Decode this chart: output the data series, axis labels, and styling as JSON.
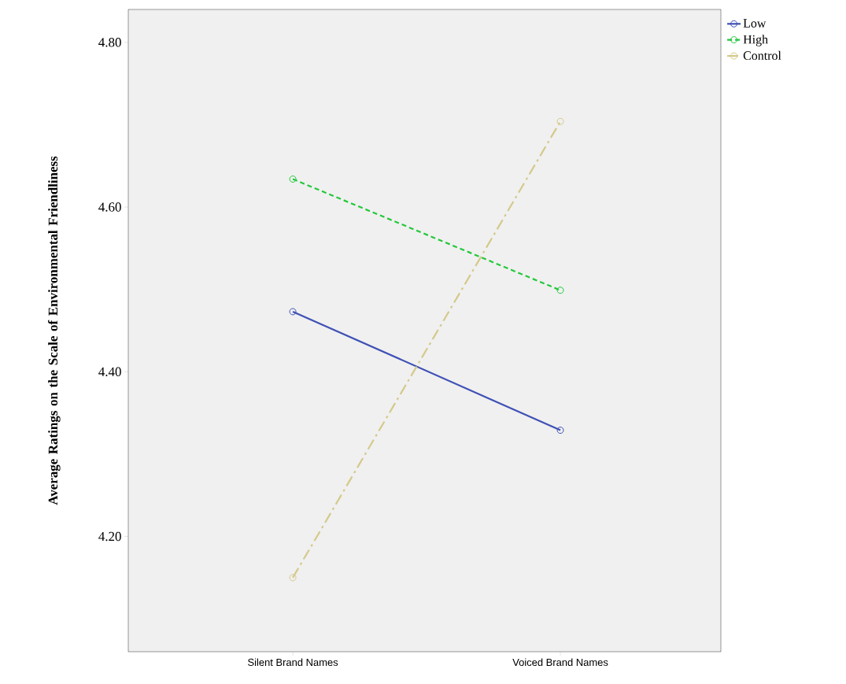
{
  "chart_data": {
    "type": "line",
    "ylabel": "Average Ratings on the Scale of Environmental Friendliness",
    "categories": [
      "Silent Brand Names",
      "Voiced Brand Names"
    ],
    "series": [
      {
        "name": "Low",
        "color": "#3f51b5",
        "values": [
          4.473,
          4.329
        ],
        "line_style": "solid"
      },
      {
        "name": "High",
        "color": "#22c83a",
        "values": [
          4.634,
          4.499
        ],
        "line_style": "dashed"
      },
      {
        "name": "Control",
        "color": "#d4c98a",
        "values": [
          4.15,
          4.704
        ],
        "line_style": "dashdot"
      }
    ],
    "ylim": [
      4.06,
      4.84
    ],
    "yticks": [
      {
        "value": 4.2,
        "label": "4.20"
      },
      {
        "value": 4.4,
        "label": "4.40"
      },
      {
        "value": 4.6,
        "label": "4.60"
      },
      {
        "value": 4.8,
        "label": "4.80"
      }
    ],
    "marker": "circle",
    "grid": false,
    "legend": "top right"
  }
}
